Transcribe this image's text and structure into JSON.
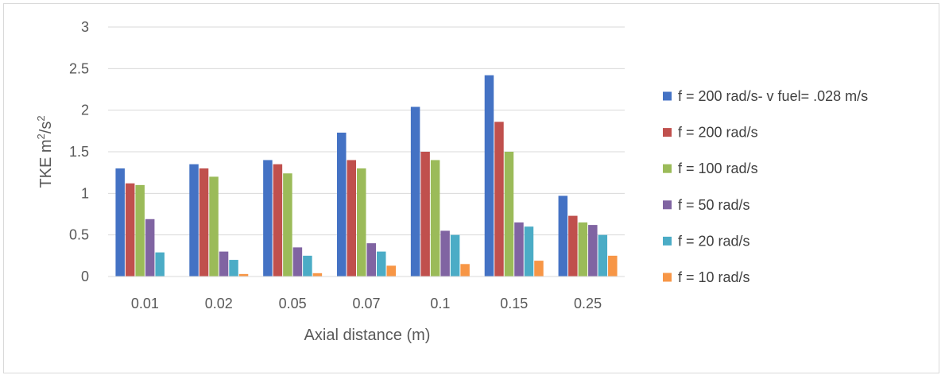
{
  "chart_data": {
    "type": "bar",
    "title": "",
    "xlabel": "Axial distance (m)",
    "ylabel_main": "TKE m",
    "ylabel_sup1": "2",
    "ylabel_mid": "/s",
    "ylabel_sup2": "2",
    "categories": [
      "0.01",
      "0.02",
      "0.05",
      "0.07",
      "0.1",
      "0.15",
      "0.25"
    ],
    "ylim": [
      0,
      3
    ],
    "yticks": [
      "0",
      "0.5",
      "1",
      "1.5",
      "2",
      "2.5",
      "3"
    ],
    "ytick_values": [
      0,
      0.5,
      1,
      1.5,
      2,
      2.5,
      3
    ],
    "grid": true,
    "legend_position": "right",
    "series": [
      {
        "name": "f = 200 rad/s- v fuel= .028 m/s",
        "color": "#4472C4",
        "values": [
          1.3,
          1.35,
          1.4,
          1.73,
          2.04,
          2.42,
          0.97
        ]
      },
      {
        "name": "f = 200 rad/s",
        "color": "#C0504D",
        "values": [
          1.12,
          1.3,
          1.35,
          1.4,
          1.5,
          1.86,
          0.73
        ]
      },
      {
        "name": "f = 100 rad/s",
        "color": "#9BBB59",
        "values": [
          1.1,
          1.2,
          1.24,
          1.3,
          1.4,
          1.5,
          0.65
        ]
      },
      {
        "name": "f = 50 rad/s",
        "color": "#8064A2",
        "values": [
          0.69,
          0.3,
          0.35,
          0.4,
          0.55,
          0.65,
          0.62
        ]
      },
      {
        "name": "f = 20 rad/s",
        "color": "#4BACC6",
        "values": [
          0.29,
          0.2,
          0.25,
          0.3,
          0.5,
          0.6,
          0.5
        ]
      },
      {
        "name": "f = 10 rad/s",
        "color": "#F79646",
        "values": [
          0,
          0.03,
          0.04,
          0.13,
          0.15,
          0.19,
          0.25
        ]
      }
    ]
  }
}
